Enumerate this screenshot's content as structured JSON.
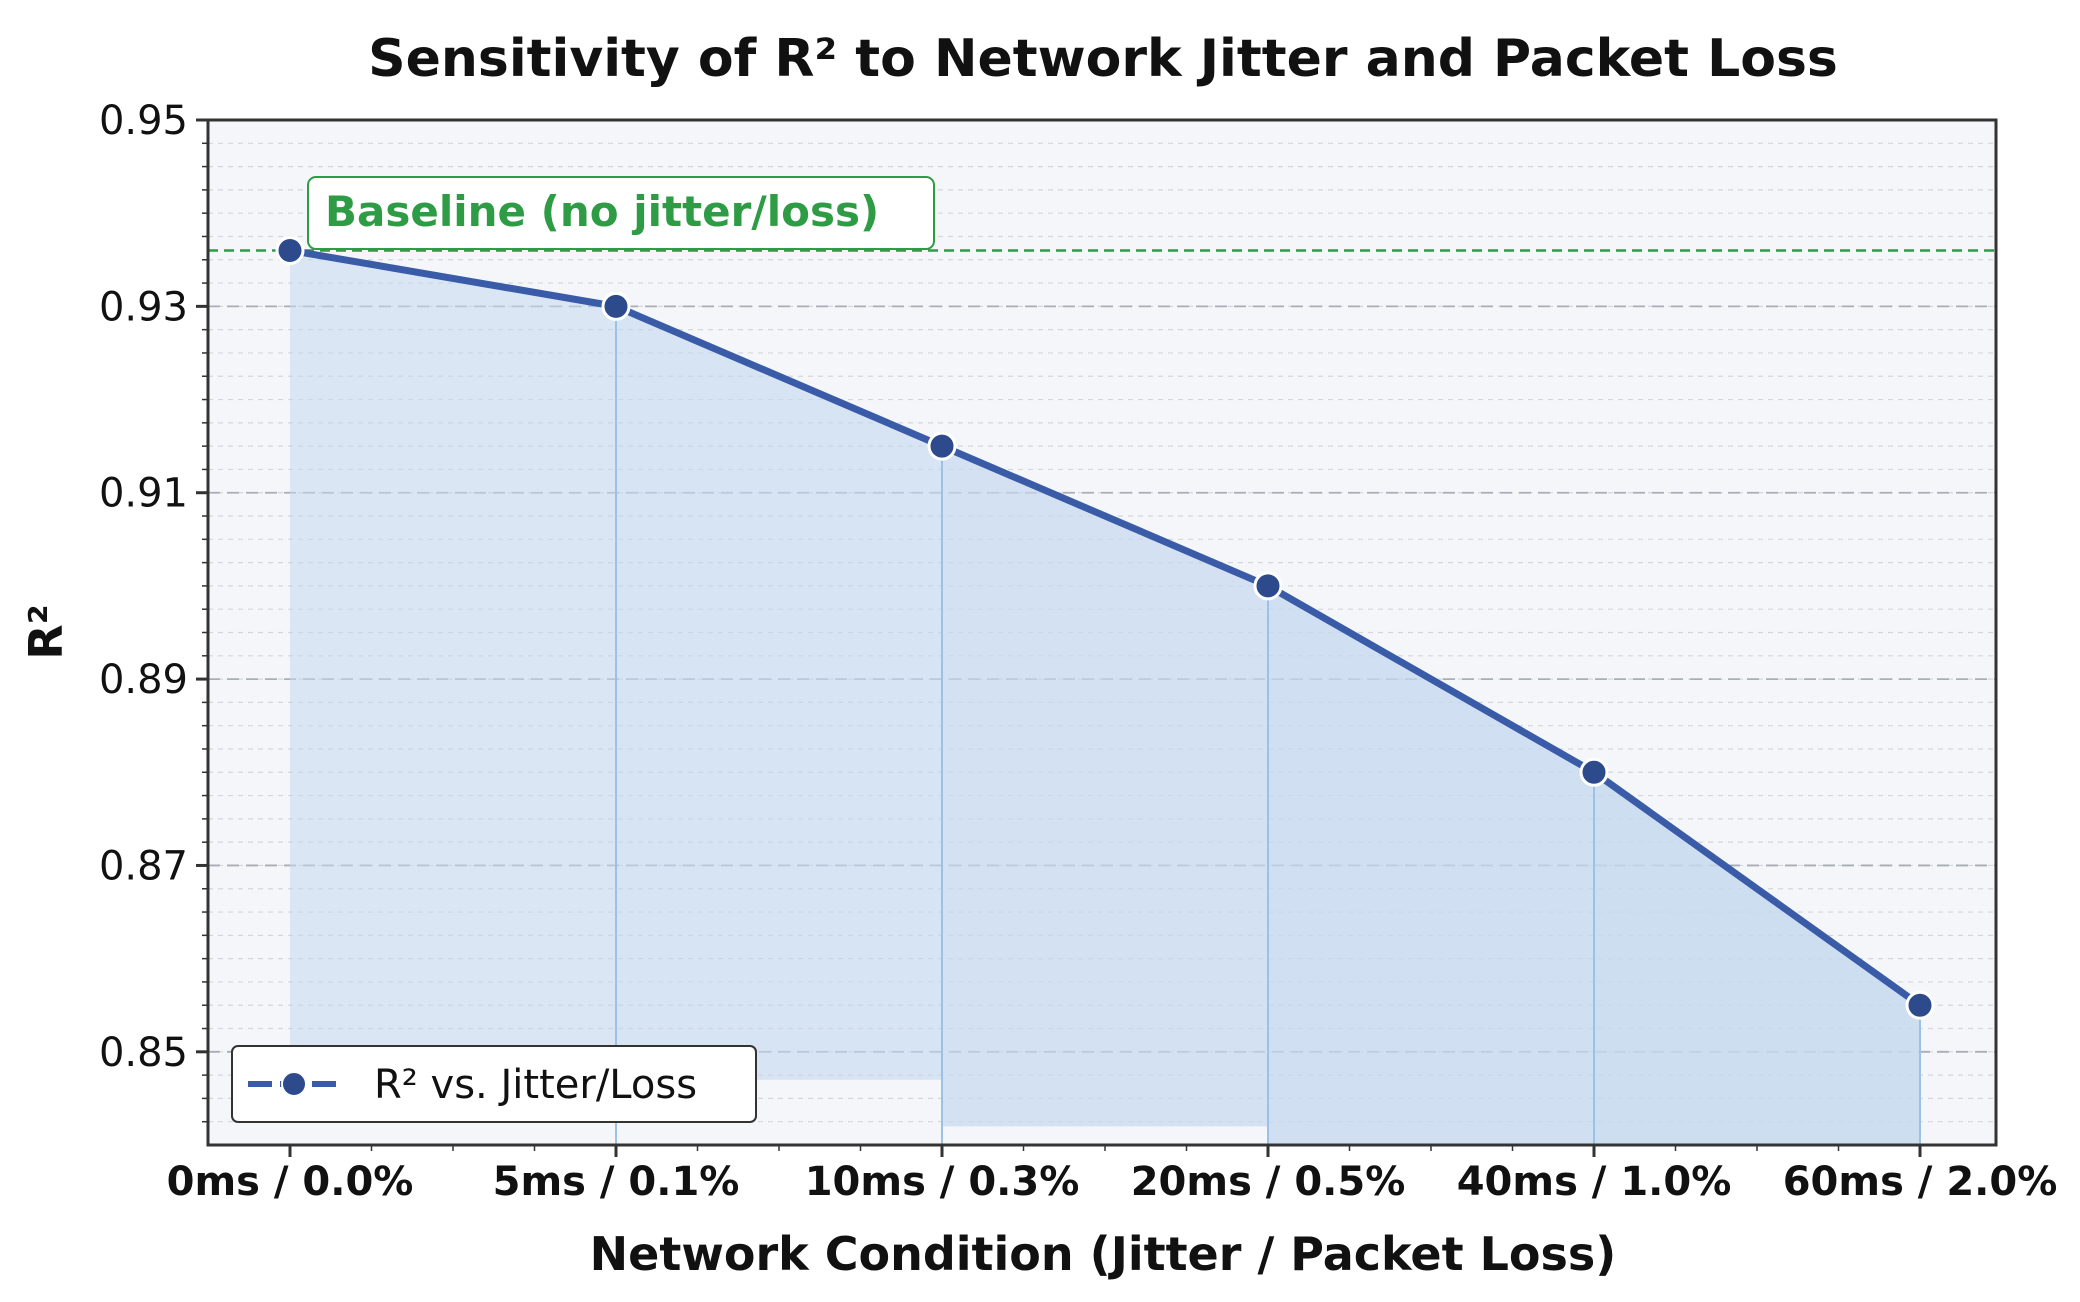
{
  "chart_data": {
    "type": "line",
    "title": "Sensitivity of R² to Network Jitter and Packet Loss",
    "xlabel": "Network Condition (Jitter / Packet Loss)",
    "ylabel": "R²",
    "categories": [
      "0ms / 0.0%",
      "5ms / 0.1%",
      "10ms / 0.3%",
      "20ms / 0.5%",
      "40ms / 1.0%",
      "60ms / 2.0%"
    ],
    "series": [
      {
        "name": "R² vs. Jitter/Loss",
        "values": [
          0.936,
          0.93,
          0.915,
          0.9,
          0.88,
          0.855
        ]
      }
    ],
    "fill_bottoms": [
      0.85,
      0.847,
      0.842,
      0.84,
      0.84,
      0.84
    ],
    "ylim": [
      0.84,
      0.95
    ],
    "yticks": [
      0.85,
      0.87,
      0.89,
      0.91,
      0.93,
      0.95
    ],
    "ytick_labels": [
      "0.85",
      "0.87",
      "0.89",
      "0.91",
      "0.93",
      "0.95"
    ],
    "baseline": {
      "value": 0.936,
      "label": "Baseline (no jitter/loss)"
    },
    "legend": {
      "position": "lower-left",
      "label": "R² vs. Jitter/Loss"
    },
    "grid": true,
    "colors": {
      "line": "#3a5ba8",
      "marker_fill": "#2c4a8c",
      "fill": "#c5d8ef",
      "baseline": "#2e9b45",
      "plot_bg": "#f4f6fa",
      "grid_major": "#a9adb6",
      "grid_minor": "#d3d6dc"
    }
  }
}
